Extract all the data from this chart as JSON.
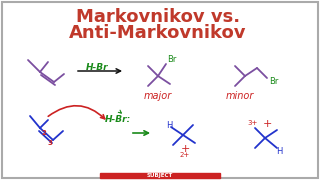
{
  "title_line1": "Markovnikov vs.",
  "title_line2": "Anti-Markovnikov",
  "title_color": "#c0392b",
  "bg_color": "#ffffff",
  "border_color": "#aaaaaa",
  "mol_color_top": "#7b4fa0",
  "mol_color_bottom": "#2233cc",
  "mol_color_red": "#cc2222",
  "label_red": "#cc2222",
  "label_green": "#1a8a1a",
  "label_purple": "#7b4fa0",
  "arrow_green": "#1a8a1a",
  "arrow_black": "#111111",
  "reagent_green": "#1a8a1a",
  "curved_arrow_red": "#cc2222",
  "hbr_top": "H-Br",
  "hbr_bottom": "H-Br:",
  "major_label": "major",
  "minor_label": "minor",
  "bottom_bar_color": "#cc2222",
  "bottom_bar_text": "SUBJECT"
}
